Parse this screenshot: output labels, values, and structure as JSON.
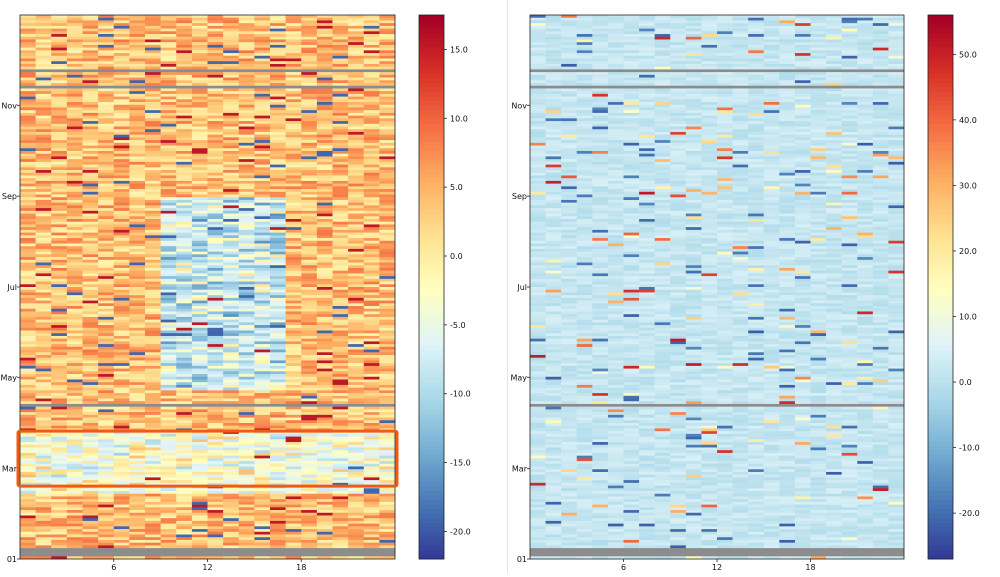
{
  "chart_data": [
    {
      "type": "heatmap",
      "title": "",
      "x_ticks": [
        6,
        12,
        18
      ],
      "x_range": [
        0,
        23
      ],
      "y_ticks": [
        "Nov",
        "Sep",
        "Jul",
        "May",
        "Mar",
        "01"
      ],
      "colormap": "RdYlBu_r",
      "colorbar": {
        "ticks": [
          15.0,
          10.0,
          5.0,
          0.0,
          -5.0,
          -10.0,
          -15.0,
          -20.0
        ],
        "range": [
          -22,
          17.5
        ]
      },
      "highlight": {
        "y_from": "Mar",
        "label": "",
        "color": "#f05a12"
      },
      "missing_color": "#8c8c8c",
      "pattern": {
        "base": 4,
        "noise": 5,
        "mid_day_dip": -14,
        "mid_day_hours": [
          9,
          16
        ],
        "dip_months": [
          "May",
          "Sep"
        ]
      }
    },
    {
      "type": "heatmap",
      "title": "",
      "x_ticks": [
        6,
        12,
        18
      ],
      "x_range": [
        0,
        23
      ],
      "y_ticks": [
        "Nov",
        "Sep",
        "Jul",
        "May",
        "Mar",
        "01"
      ],
      "colormap": "RdYlBu_r",
      "colorbar": {
        "ticks": [
          50.0,
          40.0,
          30.0,
          20.0,
          10.0,
          0.0,
          -10.0,
          -20.0
        ],
        "range": [
          -27,
          56
        ]
      },
      "missing_color": "#8c8c8c",
      "pattern": {
        "base": 2,
        "noise": 3,
        "spike_prob": 0.06,
        "spike_max": 52
      }
    }
  ]
}
